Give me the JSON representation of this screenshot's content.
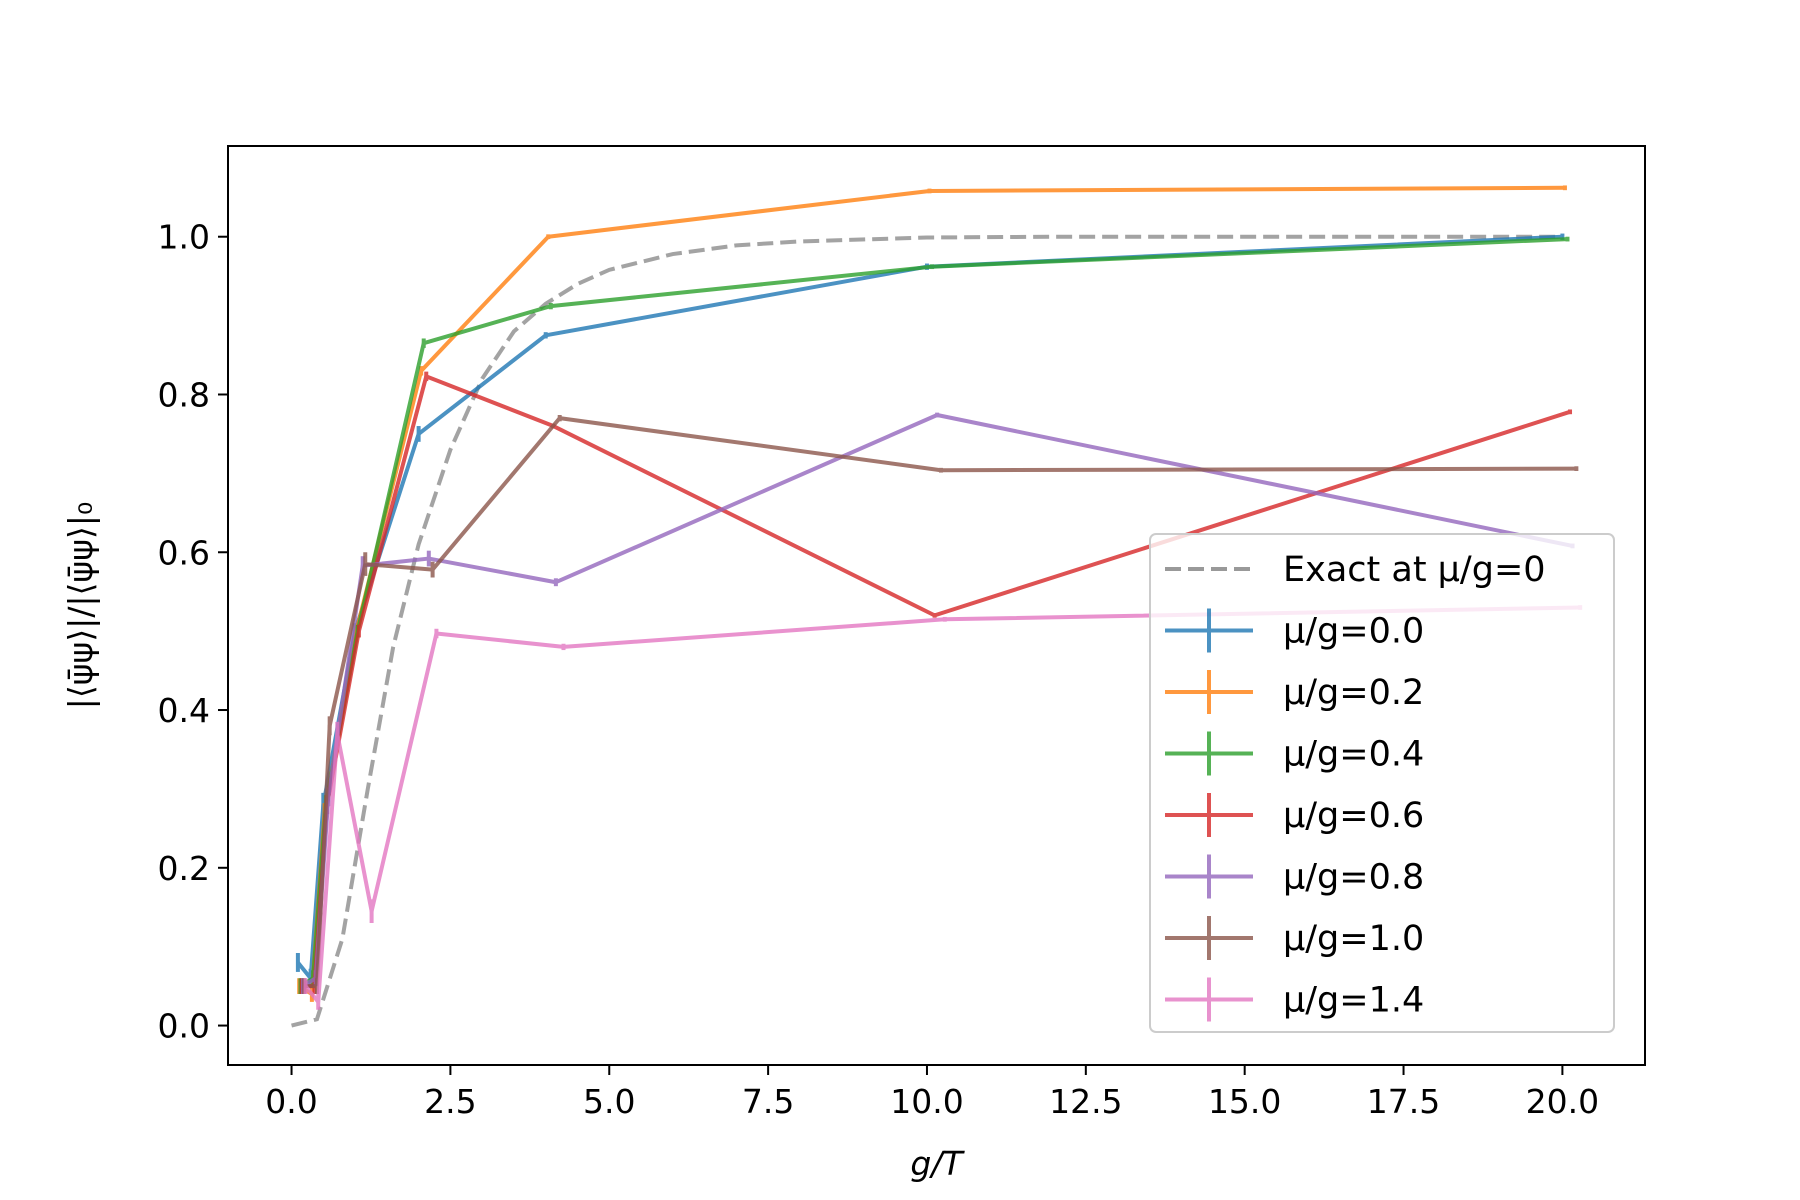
{
  "chart_data": {
    "type": "line",
    "title": "",
    "xlabel": "g/T",
    "ylabel": "|⟨ψ̄ψ⟩|/|⟨ψ̄ψ⟩|₀",
    "xlim": [
      -1.0,
      21.3
    ],
    "ylim": [
      -0.05,
      1.115
    ],
    "xticks": [
      0.0,
      2.5,
      5.0,
      7.5,
      10.0,
      12.5,
      15.0,
      17.5,
      20.0
    ],
    "xtick_labels": [
      "0.0",
      "2.5",
      "5.0",
      "7.5",
      "10.0",
      "12.5",
      "15.0",
      "17.5",
      "20.0"
    ],
    "yticks": [
      0.0,
      0.2,
      0.4,
      0.6,
      0.8,
      1.0
    ],
    "ytick_labels": [
      "0.0",
      "0.2",
      "0.4",
      "0.6",
      "0.8",
      "1.0"
    ],
    "grid": false,
    "legend_position": "lower right",
    "exact": {
      "name": "Exact at μ/g=0",
      "color": "#999999",
      "style": "dashed",
      "x": [
        0.0,
        0.4,
        0.8,
        1.2,
        1.6,
        2.0,
        2.5,
        3.0,
        3.5,
        4.0,
        4.5,
        5.0,
        6.0,
        7.0,
        8.0,
        10.0,
        12.0,
        15.0,
        20.0
      ],
      "y": [
        0.0,
        0.008,
        0.11,
        0.3,
        0.48,
        0.61,
        0.73,
        0.82,
        0.88,
        0.915,
        0.94,
        0.958,
        0.978,
        0.989,
        0.994,
        0.999,
        1.0,
        1.0,
        1.0
      ]
    },
    "series": [
      {
        "name": "μ/g=0.0",
        "color": "#1f77b4",
        "x": [
          0.1,
          0.3,
          0.5,
          1.0,
          2.0,
          4.0,
          10.0,
          20.0
        ],
        "y": [
          0.08,
          0.06,
          0.28,
          0.5,
          0.75,
          0.875,
          0.962,
          1.0
        ],
        "err": [
          0.012,
          0.012,
          0.015,
          0.01,
          0.01,
          0.004,
          0.004,
          0.004
        ]
      },
      {
        "name": "μ/g=0.2",
        "color": "#ff7f0e",
        "x": [
          0.12,
          0.32,
          0.52,
          1.02,
          2.04,
          4.04,
          10.04,
          20.04
        ],
        "y": [
          0.05,
          0.04,
          0.27,
          0.5,
          0.83,
          1.0,
          1.058,
          1.062
        ],
        "err": [
          0.01,
          0.01,
          0.012,
          0.008,
          0.006,
          0.003,
          0.003,
          0.003
        ]
      },
      {
        "name": "μ/g=0.4",
        "color": "#2ca02c",
        "x": [
          0.14,
          0.34,
          0.54,
          1.04,
          2.08,
          4.08,
          10.08,
          20.08
        ],
        "y": [
          0.05,
          0.06,
          0.28,
          0.5,
          0.865,
          0.912,
          0.962,
          0.997
        ],
        "err": [
          0.01,
          0.01,
          0.012,
          0.008,
          0.006,
          0.004,
          0.003,
          0.003
        ]
      },
      {
        "name": "μ/g=0.6",
        "color": "#d62728",
        "x": [
          0.16,
          0.36,
          0.56,
          1.06,
          2.12,
          4.12,
          10.12,
          20.12
        ],
        "y": [
          0.05,
          0.05,
          0.28,
          0.5,
          0.823,
          0.76,
          0.52,
          0.778
        ],
        "err": [
          0.01,
          0.01,
          0.012,
          0.008,
          0.006,
          0.003,
          0.003,
          0.003
        ]
      },
      {
        "name": "μ/g=0.8",
        "color": "#9467bd",
        "x": [
          0.18,
          0.38,
          0.58,
          1.12,
          2.16,
          4.16,
          10.16,
          20.16
        ],
        "y": [
          0.05,
          0.06,
          0.29,
          0.583,
          0.592,
          0.562,
          0.774,
          0.608
        ],
        "err": [
          0.01,
          0.01,
          0.012,
          0.012,
          0.01,
          0.005,
          0.003,
          0.003
        ]
      },
      {
        "name": "μ/g=1.0",
        "color": "#8c564b",
        "x": [
          0.2,
          0.4,
          0.6,
          1.16,
          2.22,
          4.22,
          10.22,
          20.22
        ],
        "y": [
          0.05,
          0.05,
          0.38,
          0.585,
          0.578,
          0.77,
          0.704,
          0.706
        ],
        "err": [
          0.01,
          0.01,
          0.012,
          0.015,
          0.01,
          0.004,
          0.003,
          0.003
        ]
      },
      {
        "name": "μ/g=1.4",
        "color": "#e377c2",
        "x": [
          0.22,
          0.42,
          0.72,
          1.26,
          2.28,
          4.28,
          10.28,
          20.28
        ],
        "y": [
          0.05,
          0.03,
          0.37,
          0.145,
          0.497,
          0.48,
          0.515,
          0.53
        ],
        "err": [
          0.01,
          0.01,
          0.015,
          0.015,
          0.006,
          0.004,
          0.003,
          0.003
        ]
      }
    ]
  }
}
